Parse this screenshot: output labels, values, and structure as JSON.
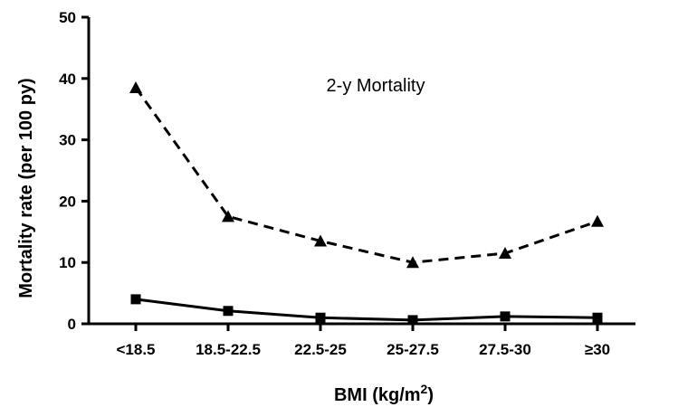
{
  "chart_data": {
    "type": "line",
    "categories": [
      "<18.5",
      "18.5-22.5",
      "22.5-25",
      "25-27.5",
      "27.5-30",
      "≥30"
    ],
    "series": [
      {
        "values": [
          38.5,
          17.5,
          13.5,
          10.0,
          11.5,
          16.7
        ],
        "marker": "triangle",
        "line_style": "dashed",
        "color": "#000000"
      },
      {
        "values": [
          4.0,
          2.1,
          1.0,
          0.6,
          1.2,
          1.0
        ],
        "marker": "square",
        "line_style": "solid",
        "color": "#000000"
      }
    ],
    "ylabel": "Mortality rate (per 100 py)",
    "xlabel_main": "BMI (kg/m",
    "xlabel_sup": "2",
    "xlabel_close": ")",
    "annotation": "2-y Mortality",
    "ylim": [
      0,
      50
    ],
    "yticks": [
      0,
      10,
      20,
      30,
      40,
      50
    ],
    "grid": false
  }
}
